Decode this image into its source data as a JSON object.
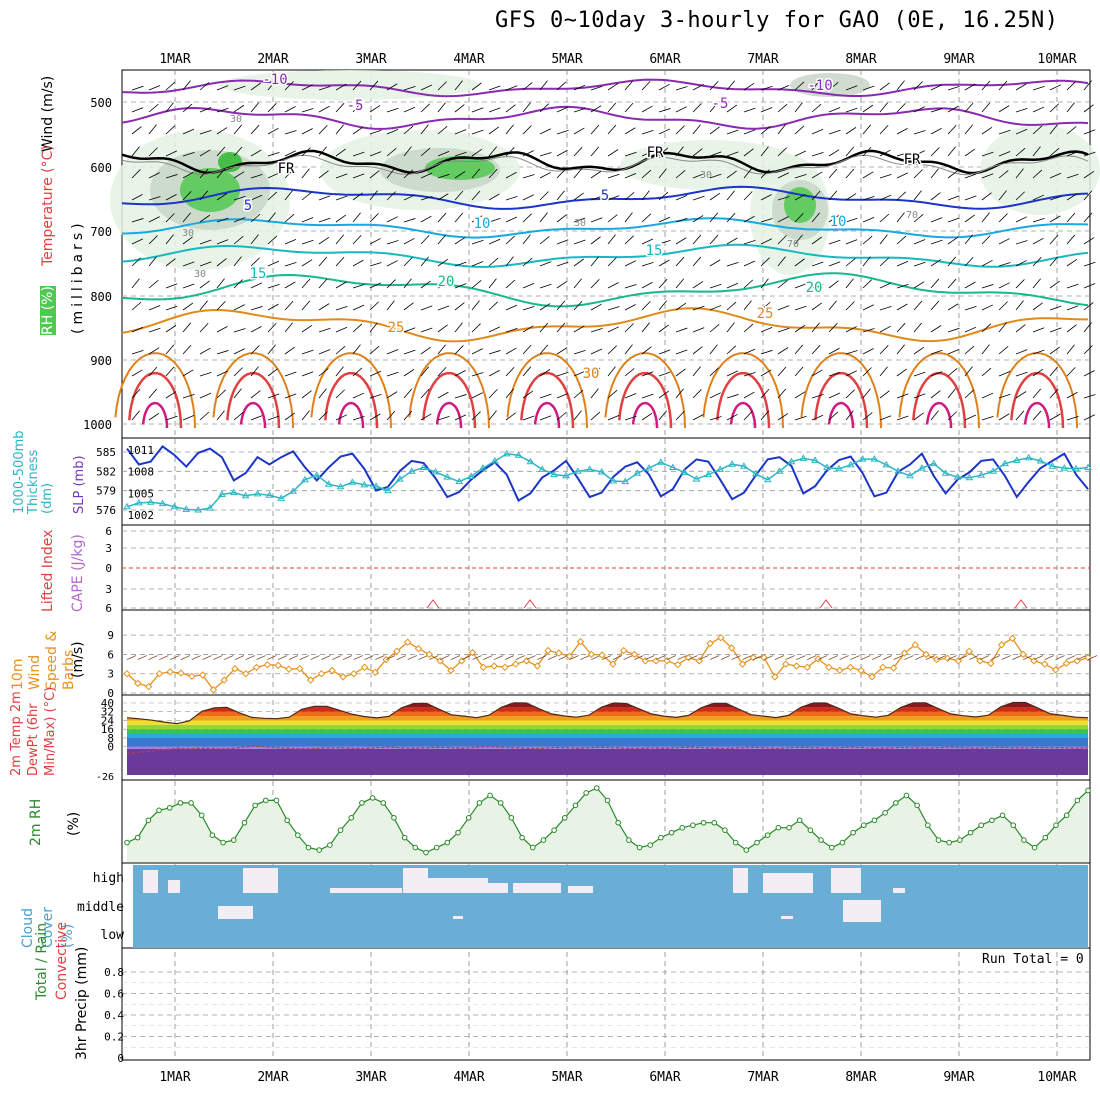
{
  "title": "GFS 0~10day 3-hourly for GAO (0E, 16.25N)",
  "run_total_label": "Run Total = 0",
  "colors": {
    "rh_green": "#4fc94f",
    "rh_pale": "#e3f2e3",
    "rh_grey": "#c8d6c8",
    "slp": "#1a35c8",
    "thickness": "#2bb6c4",
    "wind10": "#e8921c",
    "cloud": "#6aaed6",
    "rh2m": "#2a8a2a",
    "cape": "#b06ad0",
    "li": "#e04040"
  },
  "chart_data": [
    {
      "panel": "pressure-cross-section",
      "type": "line",
      "x_ticks": [
        "1MAR",
        "2MAR",
        "3MAR",
        "4MAR",
        "5MAR",
        "6MAR",
        "7MAR",
        "8MAR",
        "9MAR",
        "10MAR"
      ],
      "y_ticks": [
        "500",
        "600",
        "700",
        "800",
        "900",
        "1000"
      ],
      "y_title": "(millibars)",
      "left_labels": [
        "Wind (m/s)",
        "Temperature (°C)",
        "RH (%)"
      ],
      "isotherm_labels": [
        "-10",
        "-10",
        "-5",
        "-5",
        "FR",
        "FR",
        "FR",
        "5",
        "5",
        "10",
        "10",
        "15",
        "15",
        "20",
        "20",
        "25",
        "25",
        "30",
        "30"
      ],
      "rh_labels": [
        "30",
        "30",
        "30",
        "30",
        "30",
        "70",
        "70"
      ]
    },
    {
      "panel": "slp-thickness",
      "type": "line",
      "left_ticks": [
        "585",
        "582",
        "579",
        "576"
      ],
      "right_ticks": [
        "1011",
        "1008",
        "1005",
        "1002"
      ],
      "left_title": "1000-500mb Thickness (dm)",
      "right_title": "SLP (mb)",
      "series": [
        {
          "name": "SLP",
          "values": [
            1011.2,
            1009.0,
            1009.4,
            1011.5,
            1010.3,
            1008.7,
            1010.6,
            1011.2,
            1010.0,
            1006.8,
            1007.8,
            1010.0,
            1009.0,
            1010.0,
            1010.8,
            1008.6,
            1006.8,
            1008.6,
            1010.1,
            1010.5,
            1008.4,
            1005.4,
            1005.9,
            1008.1,
            1009.5,
            1009.2,
            1007.1,
            1004.5,
            1005.2,
            1006.9,
            1008.2,
            1009.3,
            1007.6,
            1004.0,
            1005.0,
            1007.2,
            1008.2,
            1009.5,
            1007.1,
            1004.5,
            1005.1,
            1007.3,
            1008.7,
            1009.3,
            1007.6,
            1004.6,
            1005.6,
            1008.3,
            1009.7,
            1009.4,
            1006.9,
            1004.2,
            1005.1,
            1007.5,
            1009.7,
            1010.0,
            1008.8,
            1005.0,
            1006.0,
            1008.2,
            1009.6,
            1010.1,
            1007.8,
            1004.6,
            1005.1,
            1008.0,
            1009.0,
            1010.5,
            1007.4,
            1005.0,
            1006.9,
            1007.9,
            1009.5,
            1009.7,
            1007.4,
            1004.5,
            1006.6,
            1008.5,
            1009.5,
            1010.5,
            1007.6,
            1005.6
          ]
        },
        {
          "name": "Thickness",
          "values": [
            576.5,
            577.1,
            577.2,
            577.0,
            576.5,
            576.1,
            576.0,
            576.3,
            578.4,
            578.7,
            578.2,
            578.5,
            578.3,
            577.8,
            578.9,
            580.7,
            581.4,
            580.0,
            579.6,
            580.3,
            579.9,
            579.7,
            579.0,
            580.8,
            582.0,
            582.6,
            581.9,
            581.1,
            580.4,
            581.2,
            582.5,
            583.6,
            584.7,
            584.5,
            583.5,
            582.3,
            581.5,
            581.3,
            582.0,
            582.3,
            581.9,
            580.5,
            580.4,
            581.7,
            582.5,
            583.4,
            582.6,
            581.8,
            580.8,
            581.5,
            582.3,
            583.1,
            582.8,
            581.6,
            580.7,
            582.0,
            583.5,
            584.0,
            583.7,
            582.6,
            582.4,
            583.0,
            583.9,
            583.9,
            583.0,
            582.0,
            581.3,
            582.5,
            583.2,
            581.7,
            581.1,
            581.0,
            581.4,
            582.0,
            583.2,
            583.7,
            584.1,
            583.6,
            582.8,
            582.5,
            582.4,
            582.6
          ]
        }
      ]
    },
    {
      "panel": "cape-lifted-index",
      "type": "line",
      "y_ticks": [
        "6",
        "3",
        "0",
        "3",
        "6"
      ],
      "left_title": "Lifted Index",
      "right_title": "CAPE (J/kg)"
    },
    {
      "panel": "10m-wind",
      "type": "line",
      "y_ticks": [
        "9",
        "6",
        "3",
        "0"
      ],
      "y_title": "(m/s)",
      "left_title": "10m Wind Speed & Barbs",
      "series": [
        {
          "name": "Speed",
          "values": [
            3.0,
            1.5,
            1.0,
            3.0,
            3.3,
            3.1,
            2.6,
            2.8,
            0.5,
            2.0,
            3.8,
            3.0,
            4.0,
            4.4,
            4.3,
            3.7,
            3.8,
            2.0,
            3.0,
            3.5,
            2.5,
            3.0,
            4.0,
            3.2,
            5.2,
            6.5,
            7.9,
            6.9,
            6.0,
            5.0,
            3.5,
            5.0,
            6.3,
            4.0,
            4.2,
            4.0,
            4.5,
            5.0,
            4.2,
            6.6,
            6.2,
            5.7,
            8.0,
            6.0,
            5.9,
            4.5,
            6.6,
            6.0,
            5.0,
            5.0,
            5.0,
            4.4,
            5.5,
            5.0,
            7.7,
            8.6,
            7.0,
            4.5,
            5.5,
            5.5,
            2.5,
            4.5,
            4.2,
            4.0,
            5.3,
            4.0,
            3.5,
            4.0,
            3.5,
            2.5,
            4.0,
            3.9,
            6.2,
            7.5,
            6.0,
            5.2,
            5.4,
            5.0,
            6.5,
            5.0,
            4.6,
            7.5,
            8.5,
            6.0,
            5.0,
            4.5,
            3.6,
            4.6,
            5.0,
            5.5
          ]
        }
      ]
    },
    {
      "panel": "2m-temp-dewpt",
      "type": "area",
      "y_ticks": [
        "40",
        "32",
        "24",
        "16",
        "8",
        "0"
      ],
      "bottom_label": "-26",
      "left_title": "2m Temp 2m DewPt (6hr Min/Max) (°C)",
      "series": [
        {
          "name": "Temp",
          "values": [
            26.5,
            25.5,
            24.2,
            22.5,
            21.0,
            23.7,
            32.4,
            35.6,
            36.1,
            31.0,
            26.8,
            26.0,
            25.6,
            27.0,
            34.2,
            37.0,
            37.0,
            33.4,
            29.8,
            27.6,
            26.3,
            27.8,
            35.6,
            39.5,
            39.7,
            34.3,
            29.2,
            28.0,
            26.5,
            28.8,
            36.1,
            40.2,
            40.0,
            34.8,
            30.0,
            28.2,
            27.0,
            28.8,
            36.1,
            40.0,
            39.5,
            34.8,
            30.0,
            28.0,
            26.8,
            28.6,
            35.6,
            39.6,
            39.6,
            34.4,
            29.3,
            28.0,
            26.6,
            28.6,
            36.1,
            40.0,
            40.0,
            35.2,
            30.0,
            28.4,
            27.0,
            28.7,
            36.0,
            40.2,
            40.2,
            35.0,
            30.0,
            28.4,
            27.2,
            28.8,
            36.4,
            40.5,
            40.5,
            35.2,
            30.0,
            28.6,
            27.0,
            26.5
          ]
        },
        {
          "name": "DewPt",
          "values": [
            -6.5,
            -5.0,
            -4.0,
            -2.8,
            -1.5,
            -2.0,
            -1.5,
            -1.8,
            -2.0,
            -1.0,
            0.5,
            0.0,
            -1.0,
            -1.5,
            -2.0,
            -1.8,
            -1.2,
            -1.0,
            -1.5,
            -1.8,
            -1.0,
            -0.5,
            -1.0,
            -1.5,
            -1.0,
            -0.5,
            -1.0,
            -1.5,
            -0.5,
            0.0,
            -0.5,
            -1.0,
            -1.5,
            -1.8,
            -1.0,
            -0.8,
            -1.5,
            -1.0,
            -0.5,
            -1.0,
            -1.5,
            -1.8,
            -1.2,
            -1.5,
            -1.0,
            -0.5,
            -1.0,
            -1.5,
            -1.8,
            -1.2,
            -0.5,
            -1.0,
            -1.8,
            -1.0,
            -0.5,
            -1.0,
            -1.5,
            -1.0,
            -0.5,
            -1.0,
            -1.8,
            -1.2,
            -0.8,
            -1.0,
            -1.5,
            -1.0,
            -0.5,
            -1.0,
            -1.5,
            -1.0,
            -0.5,
            -1.0,
            -1.2,
            -0.8,
            -1.0,
            -1.0,
            -1.5,
            -1.0
          ]
        }
      ]
    },
    {
      "panel": "2m-rh",
      "type": "line",
      "y_title": "(%)",
      "left_title": "2m RH",
      "series": [
        {
          "name": "2m RH",
          "values": [
            5,
            7,
            14,
            18,
            19,
            21,
            21,
            16,
            8,
            5,
            6,
            13,
            20,
            22,
            22,
            14,
            8,
            3,
            2,
            4,
            10,
            15,
            21,
            23,
            21,
            15,
            7,
            3,
            1,
            3,
            5,
            9,
            15,
            21,
            24,
            21,
            15,
            7,
            3,
            6,
            10,
            15,
            20,
            25,
            27,
            22,
            13,
            6,
            3,
            4,
            7,
            9,
            11,
            12,
            13,
            13,
            10,
            5,
            2,
            5,
            8,
            11,
            11,
            14,
            10,
            6,
            3,
            5,
            9,
            12,
            14,
            17,
            21,
            24,
            20,
            12,
            6,
            5,
            6,
            9,
            12,
            14,
            16,
            12,
            6,
            3,
            7,
            12,
            16,
            22,
            26
          ]
        }
      ]
    },
    {
      "panel": "cloud-cover",
      "type": "heatmap",
      "y_ticks": [
        "high",
        "middle",
        "low"
      ],
      "left_title": "Cloud Cover (%)"
    },
    {
      "panel": "precip",
      "type": "bar",
      "y_ticks": [
        "0.8",
        "0.6",
        "0.4",
        "0.2",
        "0"
      ],
      "left_title": "3hr Precip (mm)",
      "series_labels": [
        "Total / Rain",
        "Convective"
      ]
    }
  ]
}
